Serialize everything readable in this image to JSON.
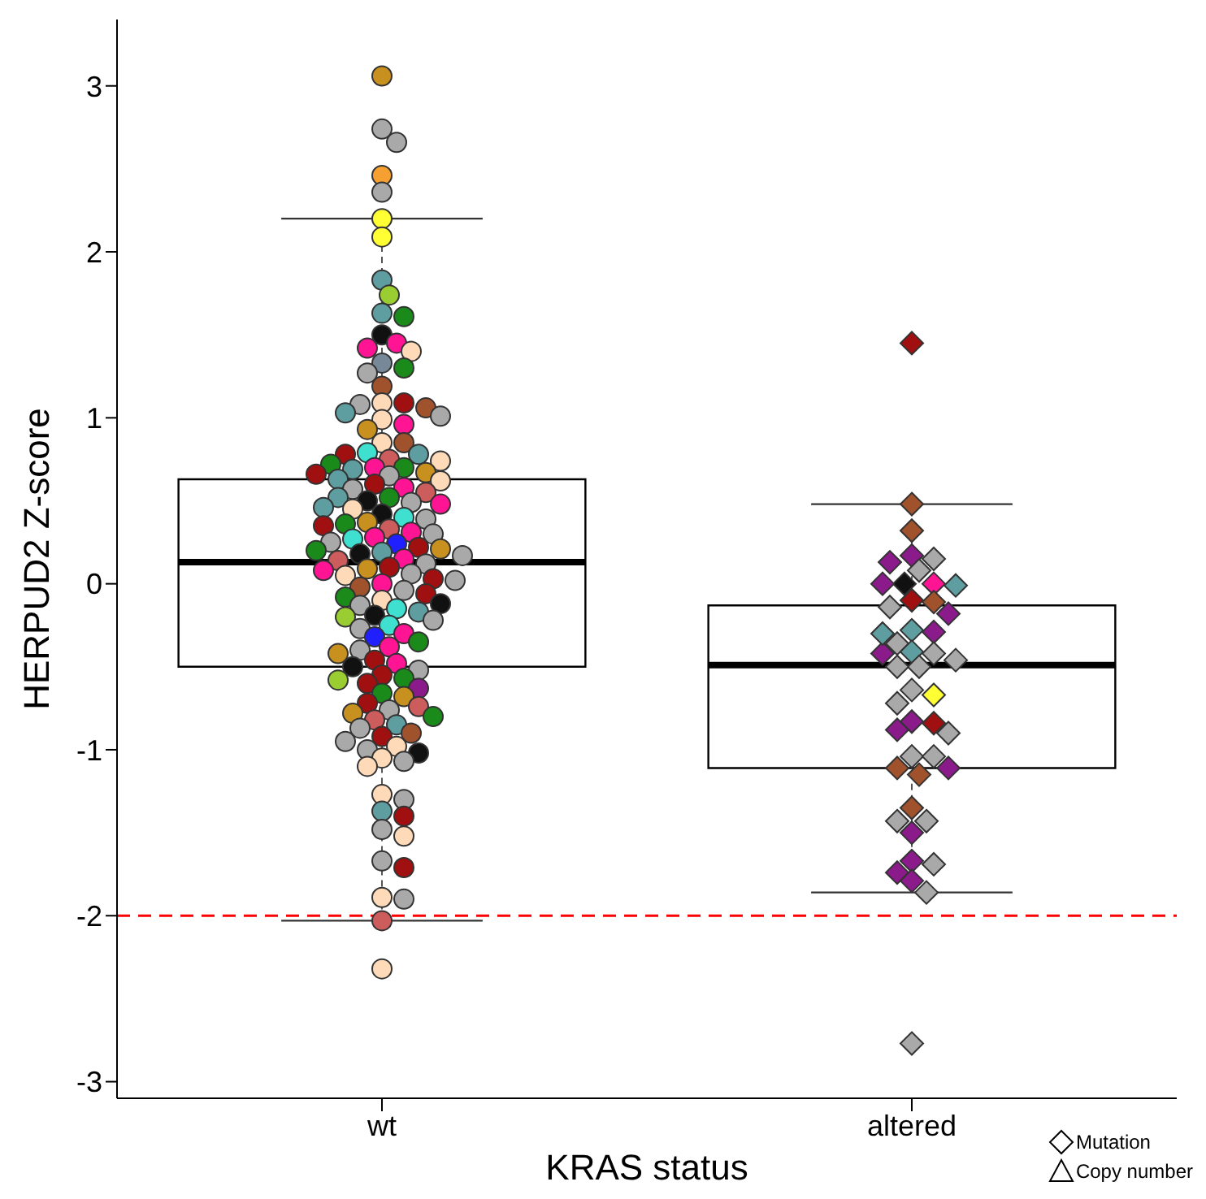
{
  "chart_data": {
    "type": "box",
    "xlabel": "KRAS status",
    "ylabel": "HERPUD2 Z-score",
    "categories": [
      "wt",
      "altered"
    ],
    "ylim": [
      -3.1,
      3.4
    ],
    "yticks": [
      -3,
      -2,
      -1,
      0,
      1,
      2,
      3
    ],
    "grid": false,
    "legend": "bottom right",
    "boxes": [
      {
        "low": -2.03,
        "q1": -0.5,
        "median": 0.13,
        "q3": 0.63,
        "high": 2.2
      },
      {
        "low": -1.86,
        "q1": -1.11,
        "median": -0.49,
        "q3": -0.13,
        "high": 0.48
      }
    ],
    "ref_lines": [
      {
        "axis": "y",
        "value": -2,
        "color": "#ff0000",
        "line_style": "dashed"
      }
    ],
    "series": [
      {
        "type": "scatter",
        "marker": "circle",
        "x": [
          "wt",
          "wt",
          "wt",
          "wt",
          "wt",
          "wt",
          "wt",
          "wt",
          "wt",
          "wt",
          "wt",
          "wt",
          "wt",
          "wt",
          "wt",
          "wt",
          "wt",
          "wt",
          "wt",
          "wt",
          "wt",
          "wt",
          "wt",
          "wt",
          "wt",
          "wt",
          "wt",
          "wt",
          "wt",
          "wt",
          "wt",
          "wt",
          "wt",
          "wt",
          "wt",
          "wt",
          "wt",
          "wt",
          "wt",
          "wt",
          "wt",
          "wt",
          "wt",
          "wt",
          "wt",
          "wt",
          "wt",
          "wt",
          "wt",
          "wt",
          "wt",
          "wt",
          "wt",
          "wt",
          "wt",
          "wt",
          "wt",
          "wt",
          "wt",
          "wt",
          "wt",
          "wt",
          "wt",
          "wt",
          "wt",
          "wt",
          "wt",
          "wt",
          "wt",
          "wt",
          "wt",
          "wt",
          "wt",
          "wt",
          "wt",
          "wt",
          "wt",
          "wt",
          "wt",
          "wt",
          "wt",
          "wt",
          "wt",
          "wt",
          "wt",
          "wt",
          "wt",
          "wt",
          "wt",
          "wt",
          "wt",
          "wt",
          "wt",
          "wt",
          "wt",
          "wt",
          "wt",
          "wt",
          "wt",
          "wt",
          "wt",
          "wt",
          "wt",
          "wt",
          "wt",
          "wt",
          "wt",
          "wt",
          "wt",
          "wt",
          "wt",
          "wt",
          "wt",
          "wt",
          "wt",
          "wt",
          "wt",
          "wt",
          "wt",
          "wt",
          "wt",
          "wt",
          "wt",
          "wt",
          "wt",
          "wt",
          "wt",
          "wt",
          "wt",
          "wt",
          "wt",
          "wt",
          "wt",
          "wt",
          "wt",
          "wt",
          "wt",
          "wt",
          "wt",
          "wt",
          "wt",
          "wt",
          "wt",
          "wt",
          "wt"
        ],
        "values": [
          3.06,
          2.74,
          2.66,
          2.46,
          2.36,
          2.2,
          2.09,
          1.83,
          1.74,
          1.63,
          1.61,
          1.5,
          1.45,
          1.42,
          1.4,
          1.33,
          1.3,
          1.27,
          1.19,
          1.09,
          1.09,
          1.08,
          1.06,
          1.03,
          1.01,
          0.99,
          0.96,
          0.93,
          0.85,
          0.85,
          0.79,
          0.78,
          0.78,
          0.75,
          0.74,
          0.72,
          0.7,
          0.7,
          0.69,
          0.67,
          0.66,
          0.65,
          0.63,
          0.62,
          0.6,
          0.58,
          0.57,
          0.55,
          0.52,
          0.52,
          0.5,
          0.49,
          0.48,
          0.46,
          0.45,
          0.42,
          0.4,
          0.39,
          0.37,
          0.36,
          0.35,
          0.33,
          0.31,
          0.3,
          0.28,
          0.27,
          0.25,
          0.24,
          0.22,
          0.21,
          0.2,
          0.19,
          0.18,
          0.17,
          0.15,
          0.14,
          0.12,
          0.1,
          0.09,
          0.08,
          0.06,
          0.05,
          0.03,
          0.02,
          0.0,
          -0.02,
          -0.04,
          -0.06,
          -0.08,
          -0.1,
          -0.12,
          -0.13,
          -0.15,
          -0.17,
          -0.19,
          -0.2,
          -0.22,
          -0.25,
          -0.27,
          -0.3,
          -0.32,
          -0.35,
          -0.38,
          -0.4,
          -0.42,
          -0.46,
          -0.48,
          -0.5,
          -0.52,
          -0.55,
          -0.57,
          -0.58,
          -0.6,
          -0.63,
          -0.66,
          -0.68,
          -0.72,
          -0.74,
          -0.76,
          -0.78,
          -0.8,
          -0.82,
          -0.85,
          -0.87,
          -0.9,
          -0.92,
          -0.95,
          -0.98,
          -1.0,
          -1.02,
          -1.05,
          -1.07,
          -1.1,
          -1.27,
          -1.3,
          -1.37,
          -1.4,
          -1.48,
          -1.52,
          -1.67,
          -1.71,
          -1.89,
          -1.9,
          -2.03,
          -2.32
        ],
        "colors": [
          "#c8901e",
          "#a9a9a9",
          "#a9a9a9",
          "#f5a030",
          "#a9a9a9",
          "#ffff33",
          "#ffff33",
          "#5f9ea0",
          "#9acd32",
          "#5f9ea0",
          "#1a8a1a",
          "#111111",
          "#ff1493",
          "#ff1493",
          "#ffdab9",
          "#778899",
          "#1a8a1a",
          "#a9a9a9",
          "#a0522d",
          "#ffdab9",
          "#a01010",
          "#a9a9a9",
          "#a0522d",
          "#5f9ea0",
          "#a9a9a9",
          "#ffdab9",
          "#ff1493",
          "#c8901e",
          "#ffdab9",
          "#a0522d",
          "#40e0d0",
          "#5f9ea0",
          "#a01010",
          "#cd5c5c",
          "#ffdab9",
          "#1a8a1a",
          "#ff1493",
          "#1a8a1a",
          "#5f9ea0",
          "#c8901e",
          "#a01010",
          "#a9a9a9",
          "#5f9ea0",
          "#ffdab9",
          "#a01010",
          "#ff1493",
          "#a9a9a9",
          "#cd5c5c",
          "#1a8a1a",
          "#5f9ea0",
          "#111111",
          "#a9a9a9",
          "#ff1493",
          "#5f9ea0",
          "#ffdab9",
          "#111111",
          "#40e0d0",
          "#a9a9a9",
          "#c8901e",
          "#1a8a1a",
          "#a01010",
          "#cd5c5c",
          "#ff1493",
          "#a9a9a9",
          "#ff1493",
          "#40e0d0",
          "#a9a9a9",
          "#2020ff",
          "#a01010",
          "#c8901e",
          "#1a8a1a",
          "#5f9ea0",
          "#111111",
          "#a9a9a9",
          "#ff1493",
          "#cd5c5c",
          "#a9a9a9",
          "#a01010",
          "#c8901e",
          "#ff1493",
          "#a9a9a9",
          "#ffdab9",
          "#a01010",
          "#a9a9a9",
          "#ff1493",
          "#a0522d",
          "#a9a9a9",
          "#a01010",
          "#1a8a1a",
          "#ffdab9",
          "#111111",
          "#a9a9a9",
          "#40e0d0",
          "#5f9ea0",
          "#111111",
          "#9acd32",
          "#a9a9a9",
          "#40e0d0",
          "#a9a9a9",
          "#ff1493",
          "#2020ff",
          "#1a8a1a",
          "#ff1493",
          "#a9a9a9",
          "#c8901e",
          "#a01010",
          "#ff1493",
          "#111111",
          "#a9a9a9",
          "#a01010",
          "#1a8a1a",
          "#9acd32",
          "#a01010",
          "#8b1a8b",
          "#1a8a1a",
          "#c8901e",
          "#a01010",
          "#cd5c5c",
          "#a9a9a9",
          "#c8901e",
          "#1a8a1a",
          "#cd5c5c",
          "#5f9ea0",
          "#a9a9a9",
          "#a0522d",
          "#a01010",
          "#a9a9a9",
          "#ffdab9",
          "#a9a9a9",
          "#111111",
          "#ffdab9",
          "#a9a9a9",
          "#ffdab9",
          "#ffdab9",
          "#a9a9a9",
          "#5f9ea0",
          "#a01010",
          "#a9a9a9",
          "#ffdab9",
          "#a9a9a9",
          "#a01010",
          "#ffdab9",
          "#a9a9a9",
          "#cd5c5c",
          "#ffdab9"
        ]
      },
      {
        "type": "scatter",
        "name": "Mutation",
        "marker": "diamond",
        "x": [
          "altered",
          "altered",
          "altered",
          "altered",
          "altered",
          "altered",
          "altered",
          "altered",
          "altered",
          "altered",
          "altered",
          "altered",
          "altered",
          "altered",
          "altered",
          "altered",
          "altered",
          "altered",
          "altered",
          "altered",
          "altered",
          "altered",
          "altered",
          "altered",
          "altered",
          "altered",
          "altered",
          "altered",
          "altered",
          "altered",
          "altered",
          "altered",
          "altered",
          "altered",
          "altered",
          "altered",
          "altered",
          "altered",
          "altered",
          "altered",
          "altered",
          "altered",
          "altered",
          "altered",
          "altered",
          "altered",
          "altered"
        ],
        "values": [
          1.45,
          0.48,
          0.32,
          0.17,
          0.15,
          0.13,
          0.08,
          0.0,
          0.0,
          0.0,
          -0.01,
          -0.1,
          -0.11,
          -0.14,
          -0.18,
          -0.28,
          -0.29,
          -0.36,
          -0.41,
          -0.42,
          -0.42,
          -0.5,
          -0.5,
          -0.64,
          -0.67,
          -0.72,
          -0.83,
          -0.84,
          -0.88,
          -0.9,
          -1.04,
          -1.04,
          -1.11,
          -1.11,
          -1.15,
          -1.35,
          -1.43,
          -1.43,
          -1.5,
          -1.67,
          -1.69,
          -1.74,
          -1.79,
          -1.86,
          -2.77,
          -0.46,
          -0.3
        ],
        "colors": [
          "#a01010",
          "#a0522d",
          "#a0522d",
          "#8b1a8b",
          "#a9a9a9",
          "#8b1a8b",
          "#a9a9a9",
          "#111111",
          "#ff1493",
          "#8b1a8b",
          "#5f9ea0",
          "#a01010",
          "#a0522d",
          "#a9a9a9",
          "#8b1a8b",
          "#5f9ea0",
          "#8b1a8b",
          "#a9a9a9",
          "#5f9ea0",
          "#a9a9a9",
          "#8b1a8b",
          "#a9a9a9",
          "#a9a9a9",
          "#a9a9a9",
          "#ffff33",
          "#a9a9a9",
          "#8b1a8b",
          "#a01010",
          "#8b1a8b",
          "#a9a9a9",
          "#a9a9a9",
          "#a9a9a9",
          "#a0522d",
          "#8b1a8b",
          "#a0522d",
          "#a0522d",
          "#a9a9a9",
          "#a9a9a9",
          "#8b1a8b",
          "#8b1a8b",
          "#a9a9a9",
          "#8b1a8b",
          "#8b1a8b",
          "#a9a9a9",
          "#a9a9a9",
          "#a9a9a9",
          "#5f9ea0"
        ]
      }
    ],
    "annotations": [
      "Copy number"
    ]
  }
}
